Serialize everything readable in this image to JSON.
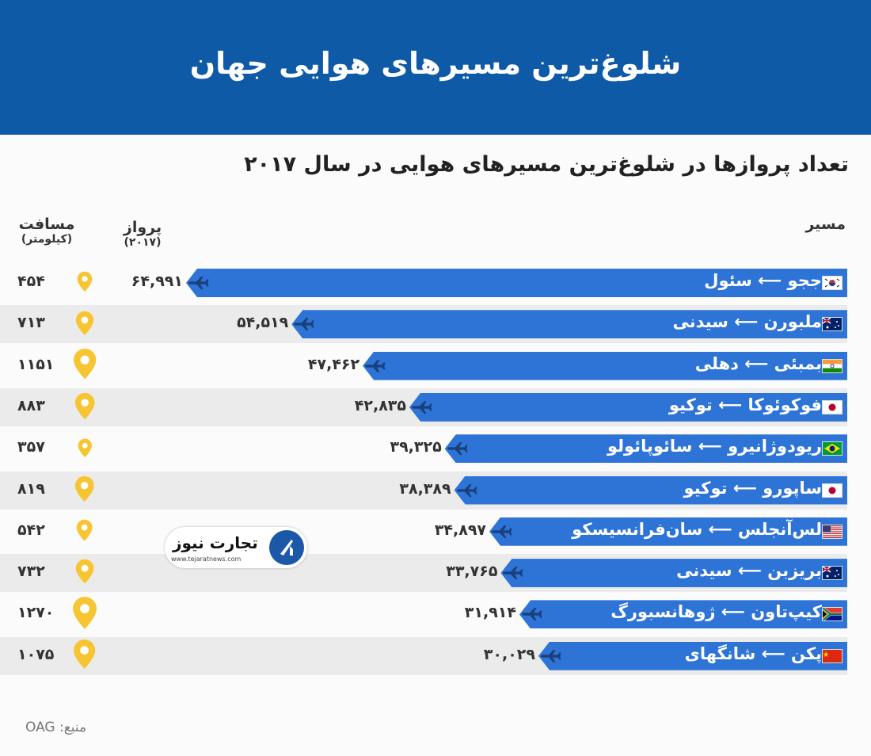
{
  "header": {
    "title": "شلوغ‌ترین مسیرهای هوایی جهان"
  },
  "subtitle": "تعداد پروازها در شلوغ‌ترین مسیرهای هوایی در سال ۲۰۱۷",
  "columns": {
    "distance": "مسافت",
    "distance_unit": "(کیلومتر)",
    "flights": "پرواز",
    "flights_year": "(۲۰۱۷)",
    "route": "مسیر"
  },
  "logo": {
    "text": "تجارت نیوز",
    "url": "www.tejaratnews.com"
  },
  "source": "منبع: OAG",
  "colors": {
    "header": "#0e5aa6",
    "bar": "#2d74d6",
    "pin": "#f7c531"
  },
  "chart_data": {
    "type": "bar",
    "orientation": "horizontal",
    "title": "تعداد پروازها در شلوغ‌ترین مسیرهای هوایی در سال ۲۰۱۷",
    "rows": [
      {
        "route": "ججو ⟵ سئول",
        "flag": "south-korea",
        "flights": 64991,
        "flights_label": "۶۴,۹۹۱",
        "distance": 454,
        "distance_label": "۴۵۴"
      },
      {
        "route": "ملبورن ⟵ سیدنی",
        "flag": "australia",
        "flights": 54519,
        "flights_label": "۵۴,۵۱۹",
        "distance": 713,
        "distance_label": "۷۱۳"
      },
      {
        "route": "بمبئی ⟵ دهلی",
        "flag": "india",
        "flights": 47462,
        "flights_label": "۴۷,۴۶۲",
        "distance": 1151,
        "distance_label": "۱۱۵۱"
      },
      {
        "route": "فوکوئوکا ⟵ توکیو",
        "flag": "japan",
        "flights": 42835,
        "flights_label": "۴۲,۸۳۵",
        "distance": 883,
        "distance_label": "۸۸۳"
      },
      {
        "route": "ریودوژانیرو ⟵ سائوپائولو",
        "flag": "brazil",
        "flights": 39325,
        "flights_label": "۳۹,۳۲۵",
        "distance": 357,
        "distance_label": "۳۵۷"
      },
      {
        "route": "ساپورو ⟵ توکیو",
        "flag": "japan",
        "flights": 38389,
        "flights_label": "۳۸,۳۸۹",
        "distance": 819,
        "distance_label": "۸۱۹"
      },
      {
        "route": "لس‌آنجلس ⟵ سان‌فرانسیسکو",
        "flag": "usa",
        "flights": 34897,
        "flights_label": "۳۴,۸۹۷",
        "distance": 542,
        "distance_label": "۵۴۲"
      },
      {
        "route": "بریزبن ⟵ سیدنی",
        "flag": "australia",
        "flights": 33765,
        "flights_label": "۳۳,۷۶۵",
        "distance": 732,
        "distance_label": "۷۳۲"
      },
      {
        "route": "کیپ‌تاون ⟵ ژوهانسبورگ",
        "flag": "south-africa",
        "flights": 31914,
        "flights_label": "۳۱,۹۱۴",
        "distance": 1270,
        "distance_label": "۱۲۷۰"
      },
      {
        "route": "پکن ⟵ شانگهای",
        "flag": "china",
        "flights": 30029,
        "flights_label": "۳۰,۰۲۹",
        "distance": 1075,
        "distance_label": "۱۰۷۵"
      }
    ]
  }
}
